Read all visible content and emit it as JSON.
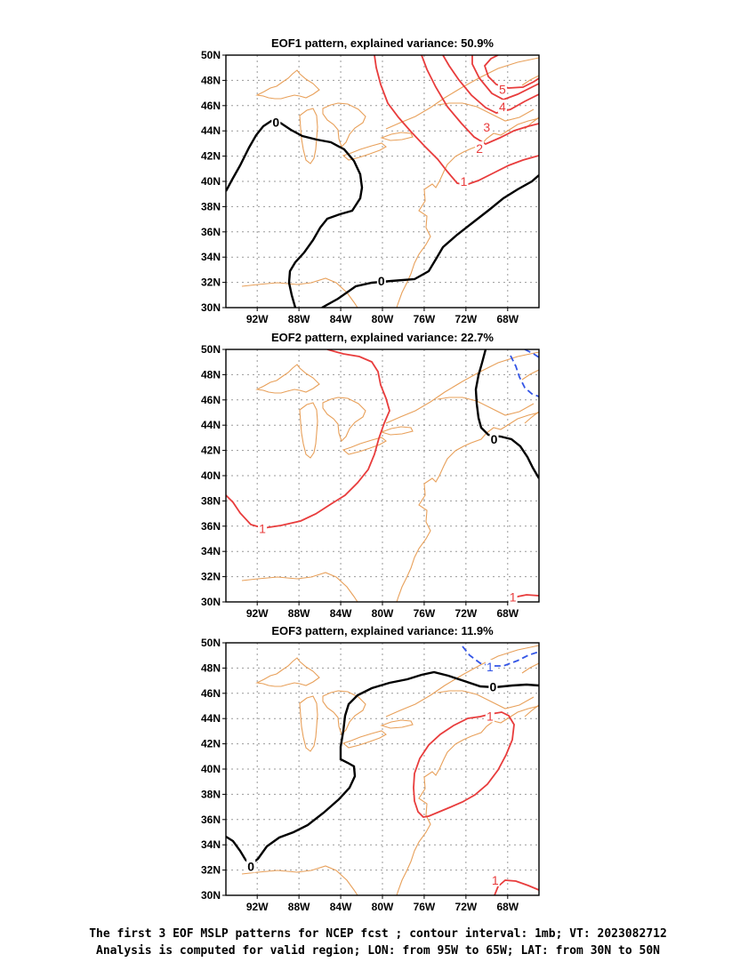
{
  "panels": [
    {
      "id": "eof1",
      "title": "EOF1 pattern, explained variance: 50.9%",
      "contour_labels": [
        {
          "text": "0",
          "lon": -90.2,
          "lat": 44.7,
          "color": "#000000"
        },
        {
          "text": "0",
          "lon": -80.1,
          "lat": 32.1,
          "color": "#000000"
        },
        {
          "text": "1",
          "lon": -72.2,
          "lat": 40.0,
          "color": "#e83c3c"
        },
        {
          "text": "2",
          "lon": -70.7,
          "lat": 42.6,
          "color": "#e83c3c"
        },
        {
          "text": "3",
          "lon": -70.0,
          "lat": 44.3,
          "color": "#e83c3c"
        },
        {
          "text": "4",
          "lon": -68.5,
          "lat": 45.9,
          "color": "#e83c3c"
        },
        {
          "text": "5",
          "lon": -68.5,
          "lat": 47.3,
          "color": "#e83c3c"
        }
      ]
    },
    {
      "id": "eof2",
      "title": "EOF2 pattern, explained variance: 22.7%",
      "contour_labels": [
        {
          "text": "1",
          "lon": -91.5,
          "lat": 35.8,
          "color": "#e83c3c"
        },
        {
          "text": "0",
          "lon": -69.3,
          "lat": 42.9,
          "color": "#000000"
        },
        {
          "text": "1",
          "lon": -67.5,
          "lat": 30.4,
          "color": "#e83c3c"
        }
      ]
    },
    {
      "id": "eof3",
      "title": "EOF3 pattern, explained variance: 11.9%",
      "contour_labels": [
        {
          "text": "0",
          "lon": -92.6,
          "lat": 32.3,
          "color": "#000000"
        },
        {
          "text": "0",
          "lon": -69.4,
          "lat": 46.5,
          "color": "#000000"
        },
        {
          "text": "1",
          "lon": -69.7,
          "lat": 48.1,
          "color": "#3355e6"
        },
        {
          "text": "1",
          "lon": -69.7,
          "lat": 44.2,
          "color": "#e83c3c"
        },
        {
          "text": "1",
          "lon": -69.2,
          "lat": 31.2,
          "color": "#e83c3c"
        }
      ]
    }
  ],
  "map": {
    "lon_range": [
      -95,
      -65
    ],
    "lat_range": [
      30,
      50
    ],
    "lon_ticks": [
      {
        "v": -92,
        "label": "92W"
      },
      {
        "v": -88,
        "label": "88W"
      },
      {
        "v": -84,
        "label": "84W"
      },
      {
        "v": -80,
        "label": "80W"
      },
      {
        "v": -76,
        "label": "76W"
      },
      {
        "v": -72,
        "label": "72W"
      },
      {
        "v": -68,
        "label": "68W"
      }
    ],
    "lat_ticks": [
      {
        "v": 30,
        "label": "30N"
      },
      {
        "v": 32,
        "label": "32N"
      },
      {
        "v": 34,
        "label": "34N"
      },
      {
        "v": 36,
        "label": "36N"
      },
      {
        "v": 38,
        "label": "38N"
      },
      {
        "v": 40,
        "label": "40N"
      },
      {
        "v": 42,
        "label": "42N"
      },
      {
        "v": 44,
        "label": "44N"
      },
      {
        "v": 46,
        "label": "46N"
      },
      {
        "v": 48,
        "label": "48N"
      },
      {
        "v": 50,
        "label": "50N"
      }
    ],
    "colors": {
      "coast": "#e8a05a",
      "positive": "#e83c3c",
      "negative": "#3355e6",
      "zero": "#000000",
      "grid": "#999999"
    }
  },
  "caption": {
    "line1": "The first 3 EOF MSLP patterns for NCEP fcst ; contour interval: 1mb; VT: 2023082712",
    "line2": "Analysis is computed for valid region; LON: from 95W to 65W; LAT: from 30N to 50N"
  }
}
